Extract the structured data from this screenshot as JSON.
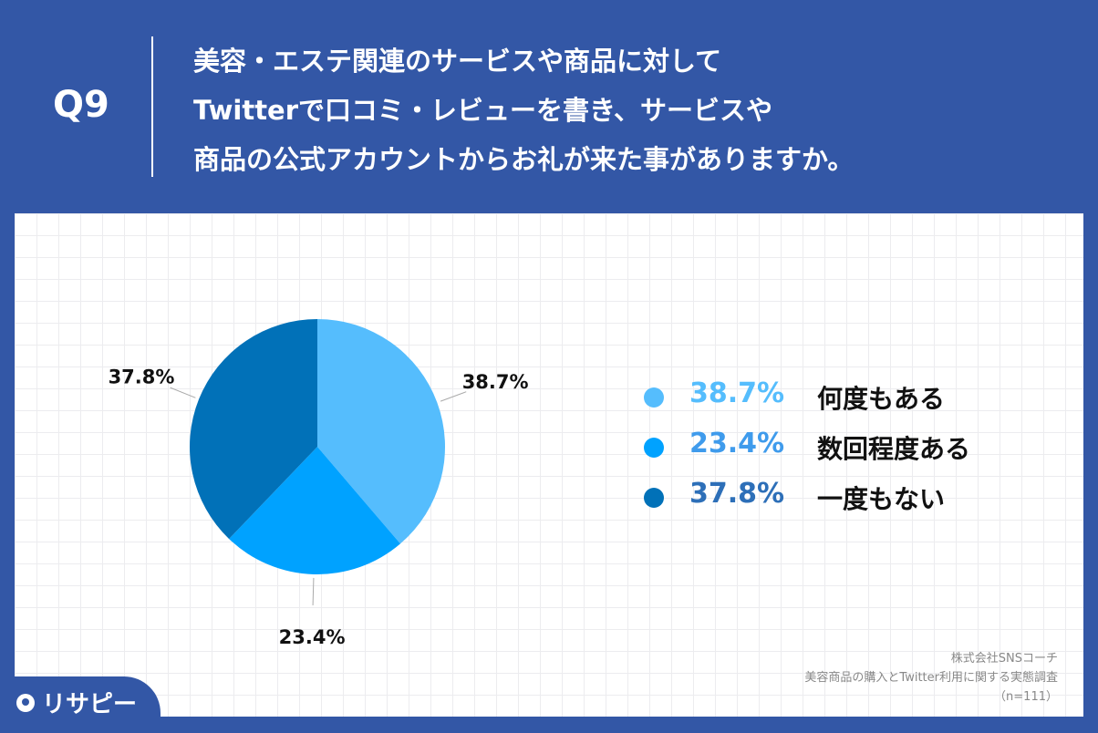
{
  "header": {
    "question_number": "Q9",
    "question_lines": [
      "美容・エステ関連のサービスや商品に対して",
      "Twitterで口コミ・レビューを書き、サービスや",
      "商品の公式アカウントからお礼が来た事がありますか。"
    ]
  },
  "chart_data": {
    "type": "pie",
    "slices": [
      {
        "label": "何度もある",
        "value": 38.7,
        "display": "38.7%",
        "color": "#55bdfd"
      },
      {
        "label": "数回程度ある",
        "value": 23.4,
        "display": "23.4%",
        "color": "#00a2ff"
      },
      {
        "label": "一度もない",
        "value": 37.8,
        "display": "37.8%",
        "color": "#0171b8"
      }
    ],
    "legend_placement": "right",
    "legend_pct_colors": [
      "#55bdfd",
      "#3f9bec",
      "#2d6fb8"
    ]
  },
  "source": {
    "company": "株式会社SNSコーチ",
    "survey": "美容商品の購入とTwitter利用に関する実態調査",
    "sample": "（n=111）"
  },
  "logo": {
    "text": "リサピー",
    "icon": "pin-icon"
  },
  "colors": {
    "background": "#3357a6",
    "panel": "#ffffff"
  }
}
